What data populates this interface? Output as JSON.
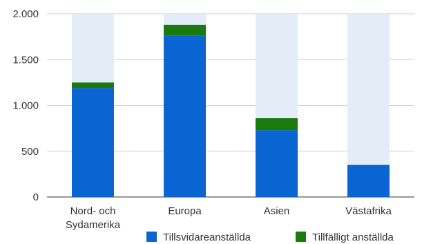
{
  "chart_data": {
    "type": "bar",
    "stacked": true,
    "categories": [
      [
        "Nord- och",
        "Sydamerika"
      ],
      [
        "Europa"
      ],
      [
        "Asien"
      ],
      [
        "Västafrika"
      ]
    ],
    "series": [
      {
        "name": "Tillsvidareanställda",
        "color": "#0a64d2",
        "values": [
          1190,
          1760,
          730,
          350
        ]
      },
      {
        "name": "Tillfälligt anställda",
        "color": "#1a7a0e",
        "values": [
          60,
          120,
          130,
          0
        ]
      }
    ],
    "background_bar": {
      "color": "#e3ecf7",
      "value": 2000
    },
    "ylim": [
      0,
      2000
    ],
    "yticks": [
      0,
      500,
      1000,
      1500,
      2000
    ],
    "ytick_labels": [
      "0",
      "500",
      "1.000",
      "1.500",
      "2.000"
    ],
    "legend_position": "bottom-right",
    "grid": true
  }
}
